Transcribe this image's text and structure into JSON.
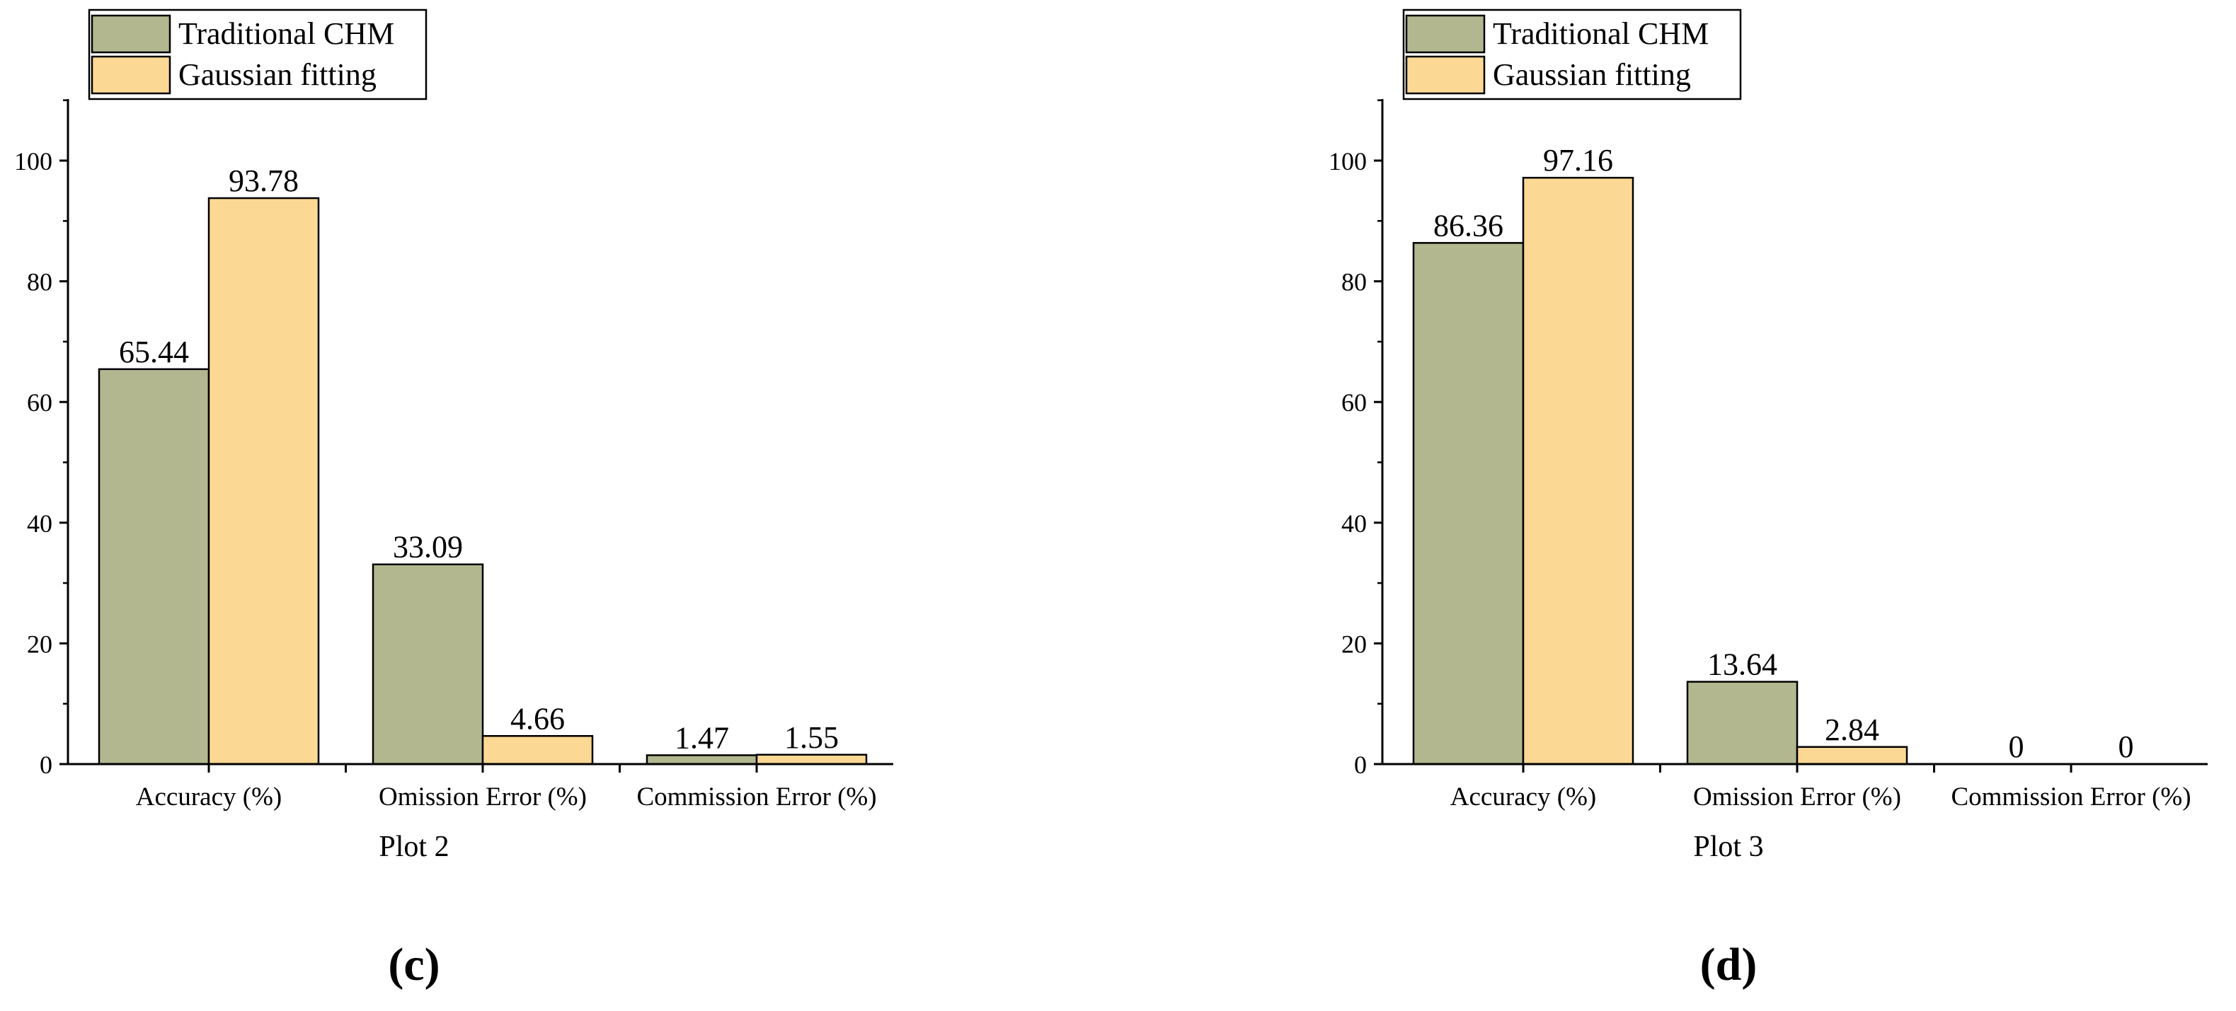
{
  "colors": {
    "traditional": "#b2b78f",
    "gaussian": "#fcd895",
    "outline": "#000000"
  },
  "chart_data": [
    {
      "type": "bar",
      "panel_label": "(c)",
      "xlabel": "Plot 2",
      "ylabel": "",
      "ylim": [
        0,
        110
      ],
      "yticks": [
        "0",
        "20",
        "40",
        "60",
        "80",
        "100"
      ],
      "categories": [
        "Accuracy (%)",
        "Omission Error (%)",
        "Commission Error (%)"
      ],
      "series": [
        {
          "name": "Traditional CHM",
          "values": [
            65.44,
            33.09,
            1.47
          ],
          "labels": [
            "65.44",
            "33.09",
            "1.47"
          ]
        },
        {
          "name": "Gaussian fitting",
          "values": [
            93.78,
            4.66,
            1.55
          ],
          "labels": [
            "93.78",
            "4.66",
            "1.55"
          ]
        }
      ],
      "legend": "top-left",
      "grid": false
    },
    {
      "type": "bar",
      "panel_label": "(d)",
      "xlabel": "Plot 3",
      "ylabel": "",
      "ylim": [
        0,
        110
      ],
      "yticks": [
        "0",
        "20",
        "40",
        "60",
        "80",
        "100"
      ],
      "categories": [
        "Accuracy (%)",
        "Omission Error (%)",
        "Commission Error (%)"
      ],
      "series": [
        {
          "name": "Traditional CHM",
          "values": [
            86.36,
            13.64,
            0
          ],
          "labels": [
            "86.36",
            "13.64",
            "0"
          ]
        },
        {
          "name": "Gaussian fitting",
          "values": [
            97.16,
            2.84,
            0
          ],
          "labels": [
            "97.16",
            "2.84",
            "0"
          ]
        }
      ],
      "legend": "top-left",
      "grid": false
    }
  ]
}
